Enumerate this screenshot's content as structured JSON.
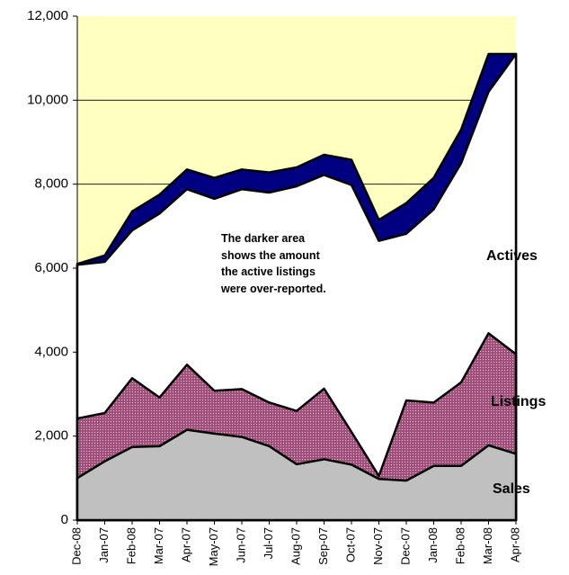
{
  "chart_data": {
    "type": "area",
    "categories": [
      "Dec-08",
      "Jan-07",
      "Feb-08",
      "Mar-07",
      "Apr-07",
      "May-07",
      "Jun-07",
      "Jul-07",
      "Aug-07",
      "Sep-07",
      "Oct-07",
      "Nov-07",
      "Dec-07",
      "Jan-08",
      "Feb-08",
      "Mar-08",
      "Apr-08"
    ],
    "series": [
      {
        "name": "Actives",
        "color": "#000080",
        "values": [
          6100,
          6300,
          7350,
          7750,
          8350,
          8150,
          8350,
          8280,
          8400,
          8700,
          8580,
          7150,
          7550,
          8150,
          9300,
          11100,
          11100
        ]
      },
      {
        "color": "#ffffff",
        "values": [
          6080,
          6150,
          6900,
          7300,
          7880,
          7650,
          7880,
          7800,
          7950,
          8220,
          7980,
          6650,
          6820,
          7400,
          8500,
          10200,
          11100
        ]
      },
      {
        "name": "Listings",
        "color": "#a0507a",
        "values": [
          2420,
          2550,
          3380,
          2920,
          3700,
          3080,
          3120,
          2800,
          2600,
          3130,
          2100,
          1050,
          2850,
          2800,
          3280,
          4450,
          3950
        ]
      },
      {
        "name": "Sales",
        "color": "#c0c0c0",
        "values": [
          1000,
          1400,
          1740,
          1760,
          2150,
          2060,
          1980,
          1760,
          1330,
          1450,
          1320,
          980,
          940,
          1290,
          1290,
          1780,
          1580
        ]
      }
    ],
    "annotation": "The darker area shows the amount the active listings were over-reported.",
    "ylim": [
      0,
      12000
    ],
    "yticks": [
      0,
      {
        "value": 2000,
        "label": "2,000"
      },
      {
        "value": 4000,
        "label": "4,000"
      },
      {
        "value": 6000,
        "label": "6,000"
      },
      {
        "value": 8000,
        "label": "8,000"
      },
      {
        "value": 10000,
        "label": "10,000"
      },
      {
        "value": 12000,
        "label": "12,000"
      }
    ],
    "grid": true,
    "plot_background": "#ffffc0"
  }
}
